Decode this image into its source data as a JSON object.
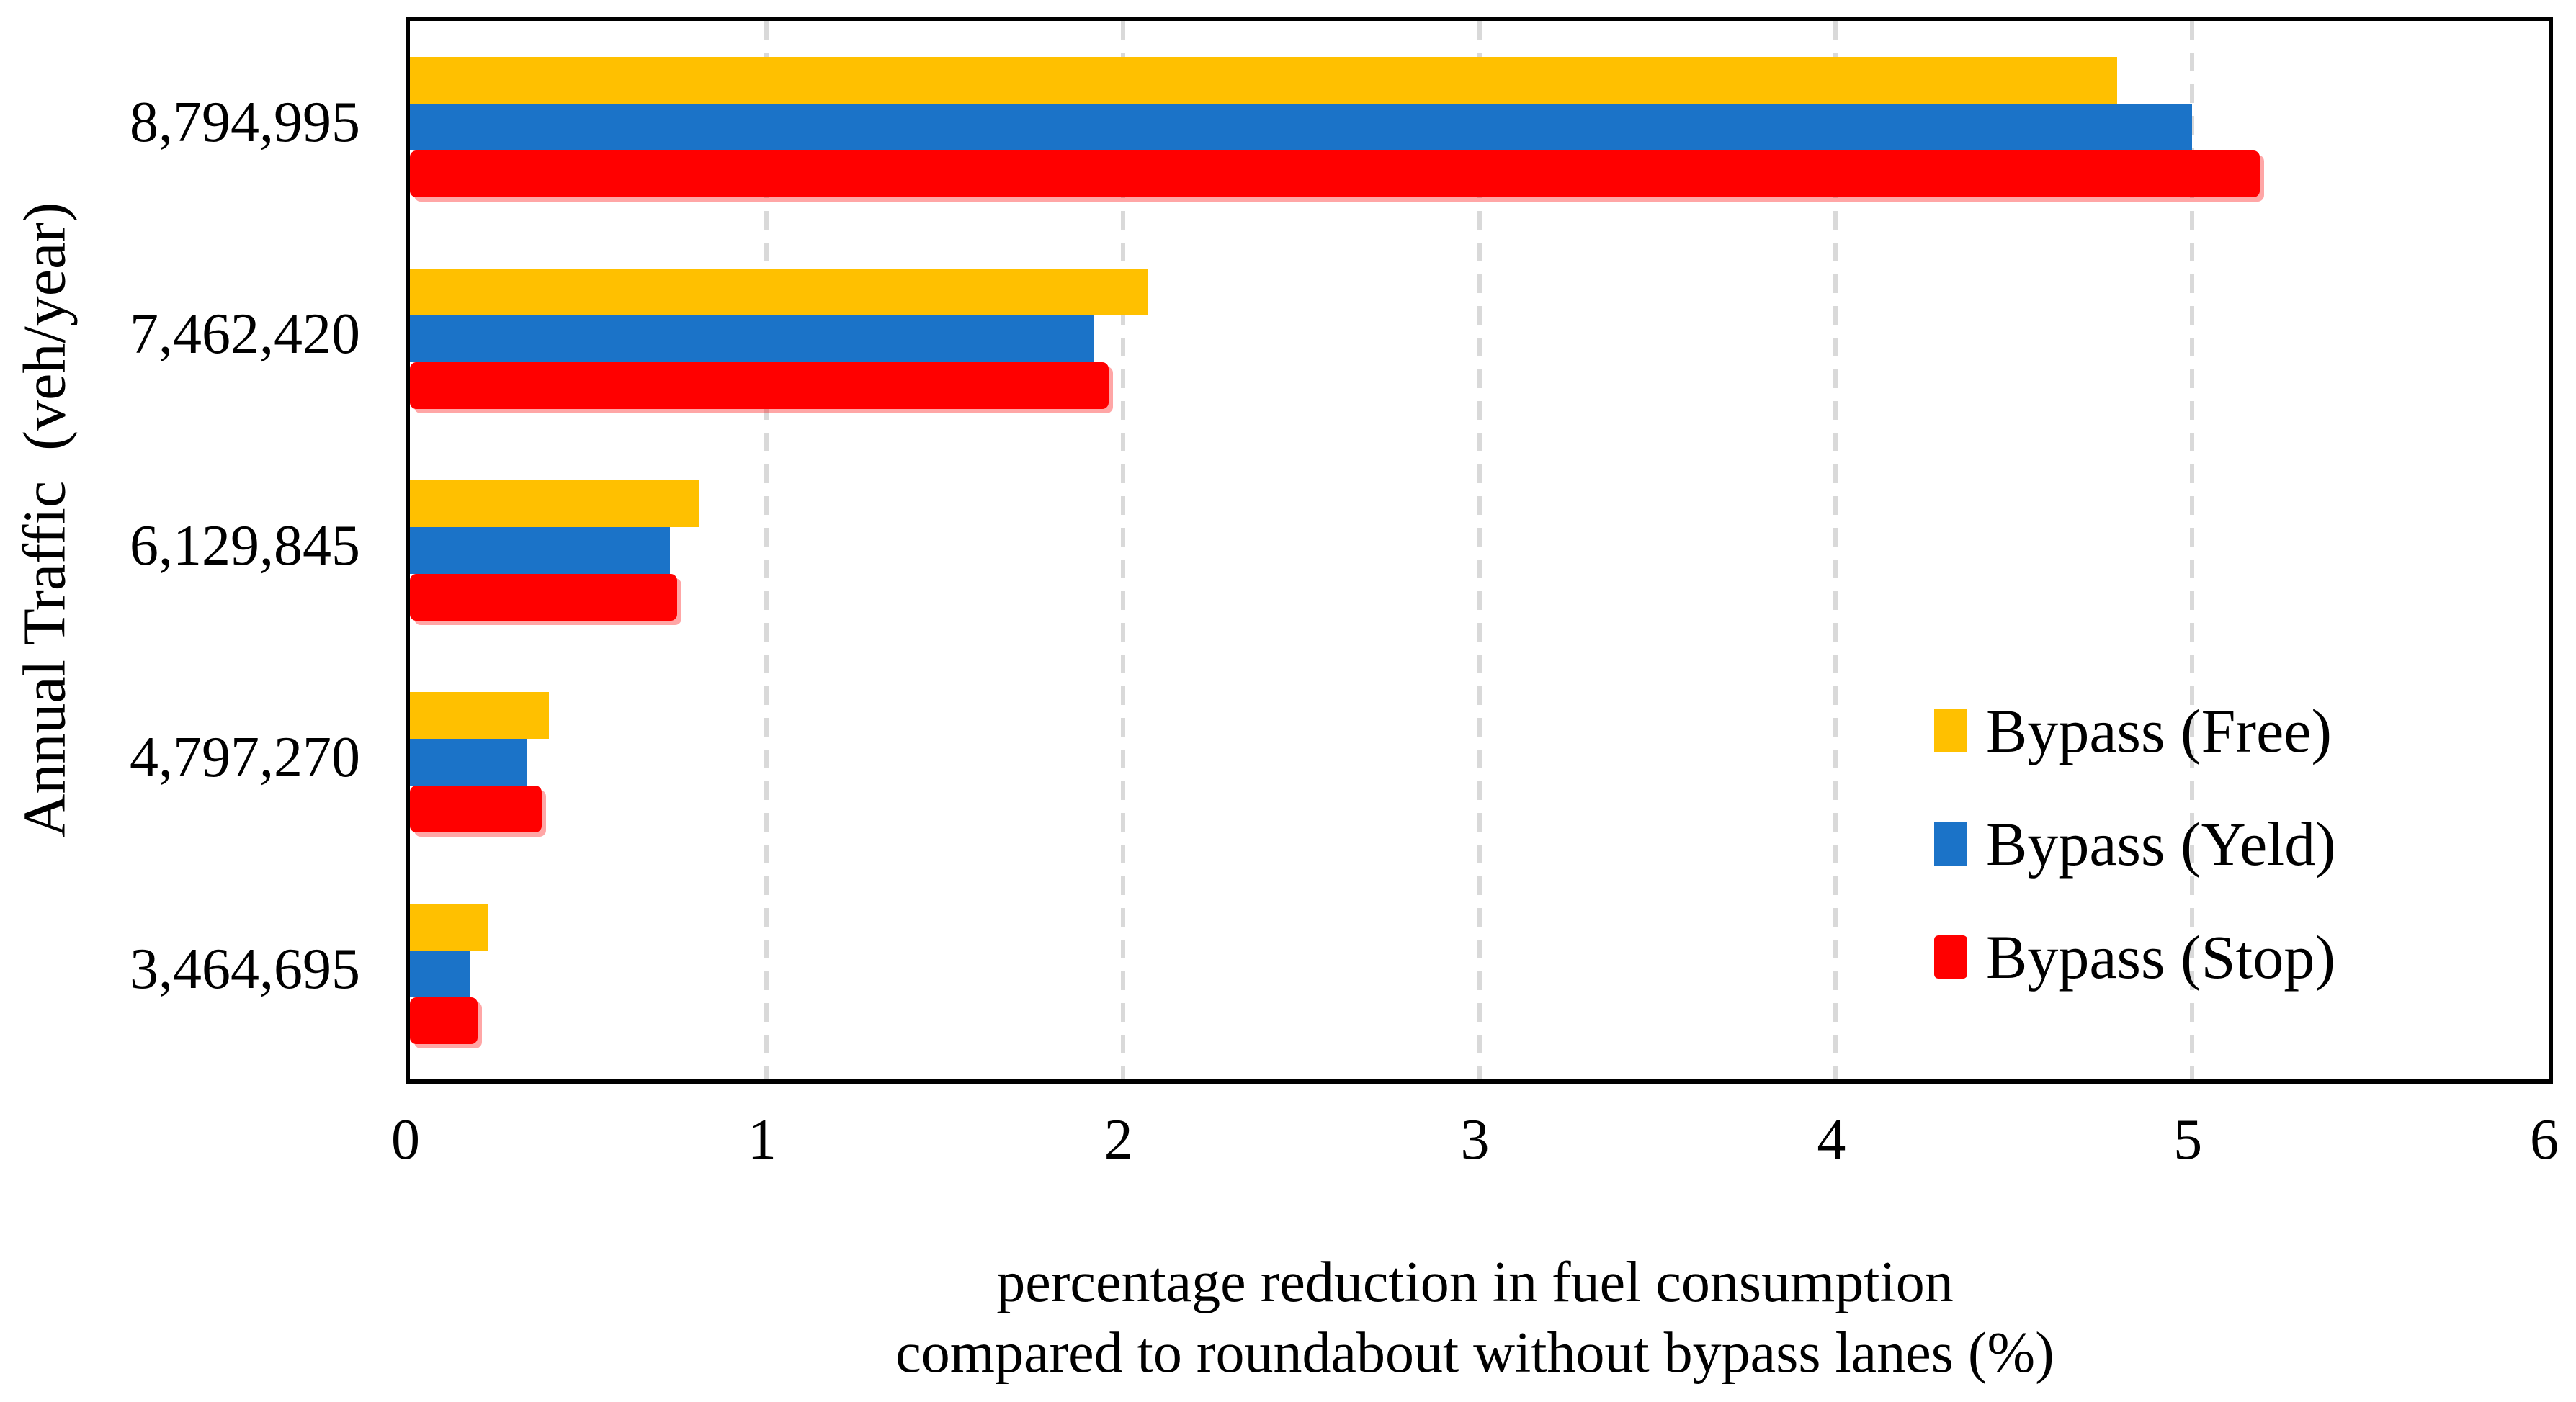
{
  "figure": {
    "background": "#FFFFFF",
    "plot_border_color": "#000000",
    "gridline_color": "#D9D9D9",
    "gridline_style": "dashed"
  },
  "chart_data": {
    "type": "bar",
    "orientation": "horizontal",
    "title": "",
    "categories": [
      "8,794,995",
      "7,462,420",
      "6,129,845",
      "4,797,270",
      "3,464,695"
    ],
    "series": [
      {
        "name": "Bypass (Free)",
        "color": "#FFC000",
        "values": [
          4.79,
          2.07,
          0.81,
          0.39,
          0.22
        ]
      },
      {
        "name": "Bypass (Yeld)",
        "color": "#1B73C8",
        "values": [
          5.0,
          1.92,
          0.73,
          0.33,
          0.17
        ]
      },
      {
        "name": "Bypass (Stop)",
        "color": "#FF0000",
        "values": [
          5.19,
          1.96,
          0.75,
          0.37,
          0.19
        ]
      }
    ],
    "xlabel_lines": [
      "percentage reduction in fuel consumption",
      "compared to roundabout without bypass lanes (%)"
    ],
    "ylabel": "Annual Traffic  (veh/year)",
    "xlim": [
      0,
      6
    ],
    "xticks": [
      "0",
      "1",
      "2",
      "3",
      "4",
      "5",
      "6"
    ],
    "grid": "vertical dashed gridlines at 1,2,3,4,5",
    "legend": {
      "position": "right-center",
      "entries": [
        "Bypass (Free)",
        "Bypass (Yeld)",
        "Bypass (Stop)"
      ]
    }
  }
}
